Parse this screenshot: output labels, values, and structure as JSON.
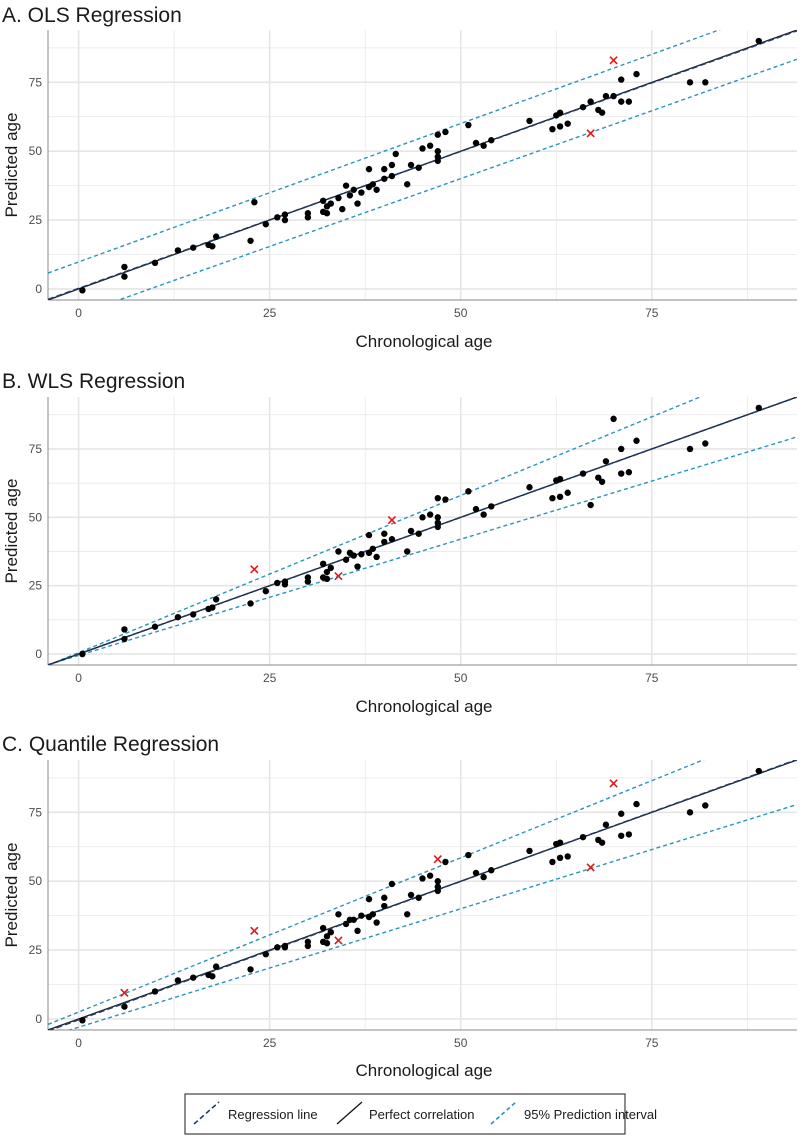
{
  "colors": {
    "regression_line": "#1f3d66",
    "perfect_line": "#1a1a1a",
    "prediction_interval": "#2a95b8",
    "points": "#000000",
    "outliers": "#e01919",
    "grid": "#e5e5e5",
    "axis_text": "#4d4d4d"
  },
  "legend": {
    "items": [
      {
        "label": "Regression line",
        "style": "dashed-dark-blue"
      },
      {
        "label": "Perfect correlation",
        "style": "solid-black"
      },
      {
        "label": "95% Prediction interval",
        "style": "dashed-light-blue"
      }
    ]
  },
  "chart_data": [
    {
      "type": "scatter",
      "title": "A. OLS Regression",
      "xlabel": "Chronological age",
      "ylabel": "Predicted age",
      "xlim": [
        -4,
        94
      ],
      "ylim": [
        -4,
        94
      ],
      "xticks": [
        0,
        25,
        50,
        75
      ],
      "yticks": [
        0,
        25,
        50,
        75
      ],
      "grid": true,
      "regression": {
        "intercept": 0.2,
        "slope": 0.995
      },
      "perfect": {
        "intercept": 0,
        "slope": 1
      },
      "pi_upper": {
        "intercept": 9.8,
        "slope": 1.005
      },
      "pi_lower": {
        "intercept": -9.2,
        "slope": 0.985
      },
      "outliers": [
        [
          70,
          83
        ],
        [
          67,
          56.5
        ]
      ],
      "points": [
        [
          0.5,
          -0.5
        ],
        [
          6,
          8
        ],
        [
          6,
          4.5
        ],
        [
          10,
          9.5
        ],
        [
          13,
          14
        ],
        [
          15,
          15
        ],
        [
          17,
          16
        ],
        [
          17.5,
          15.5
        ],
        [
          18,
          19
        ],
        [
          23,
          31.5
        ],
        [
          22.5,
          17.5
        ],
        [
          24.5,
          23.5
        ],
        [
          26,
          26
        ],
        [
          27,
          25
        ],
        [
          27,
          27
        ],
        [
          30,
          26
        ],
        [
          30,
          27.5
        ],
        [
          32,
          32
        ],
        [
          32,
          28
        ],
        [
          32.5,
          30
        ],
        [
          32.5,
          27.5
        ],
        [
          33,
          31
        ],
        [
          34,
          33
        ],
        [
          34.5,
          29
        ],
        [
          35,
          37.5
        ],
        [
          35.5,
          34
        ],
        [
          36,
          36
        ],
        [
          36.5,
          31
        ],
        [
          37,
          35
        ],
        [
          38,
          37
        ],
        [
          38,
          43.5
        ],
        [
          38.5,
          38
        ],
        [
          39,
          36
        ],
        [
          40,
          40
        ],
        [
          40,
          43.5
        ],
        [
          41,
          41
        ],
        [
          41,
          45
        ],
        [
          41.5,
          49
        ],
        [
          43,
          38
        ],
        [
          43.5,
          45
        ],
        [
          44.5,
          44
        ],
        [
          45,
          51
        ],
        [
          46,
          52
        ],
        [
          47,
          46.5
        ],
        [
          47,
          48
        ],
        [
          47,
          50
        ],
        [
          47,
          56
        ],
        [
          48,
          57
        ],
        [
          51,
          59.5
        ],
        [
          52,
          53
        ],
        [
          53,
          52
        ],
        [
          54,
          54
        ],
        [
          59,
          61
        ],
        [
          62,
          58
        ],
        [
          62.5,
          63
        ],
        [
          63,
          64
        ],
        [
          63,
          59
        ],
        [
          64,
          60
        ],
        [
          66,
          66
        ],
        [
          67,
          68
        ],
        [
          68,
          65
        ],
        [
          68.5,
          64
        ],
        [
          69,
          70
        ],
        [
          70,
          70
        ],
        [
          71,
          68
        ],
        [
          71,
          76
        ],
        [
          72,
          68
        ],
        [
          73,
          78
        ],
        [
          80,
          75
        ],
        [
          82,
          75
        ],
        [
          89,
          90
        ]
      ]
    },
    {
      "type": "scatter",
      "title": "B. WLS Regression",
      "xlabel": "Chronological age",
      "ylabel": "Predicted age",
      "xlim": [
        -4,
        94
      ],
      "ylim": [
        -4,
        94
      ],
      "xticks": [
        0,
        25,
        50,
        75
      ],
      "yticks": [
        0,
        25,
        50,
        75
      ],
      "grid": true,
      "regression": {
        "intercept": 0.0,
        "slope": 1.0
      },
      "perfect": {
        "intercept": 0,
        "slope": 1
      },
      "pi_upper": {
        "intercept": 0.5,
        "slope": 1.15
      },
      "pi_lower": {
        "intercept": -0.5,
        "slope": 0.85
      },
      "outliers": [
        [
          23,
          31
        ],
        [
          34,
          28.5
        ],
        [
          41,
          49
        ]
      ],
      "points": [
        [
          0.5,
          0
        ],
        [
          6,
          9
        ],
        [
          6,
          5.5
        ],
        [
          10,
          10
        ],
        [
          13,
          13.5
        ],
        [
          15,
          14.5
        ],
        [
          17,
          16.5
        ],
        [
          17.5,
          17
        ],
        [
          18,
          20
        ],
        [
          22.5,
          18.5
        ],
        [
          24.5,
          23
        ],
        [
          26,
          26
        ],
        [
          27,
          25.5
        ],
        [
          27,
          26.5
        ],
        [
          30,
          26.5
        ],
        [
          30,
          28
        ],
        [
          32,
          33
        ],
        [
          32,
          28
        ],
        [
          32.5,
          30
        ],
        [
          32.5,
          27.5
        ],
        [
          33,
          31.5
        ],
        [
          34,
          37.5
        ],
        [
          35,
          34.5
        ],
        [
          35.5,
          37
        ],
        [
          36,
          36
        ],
        [
          36.5,
          32
        ],
        [
          37,
          36.5
        ],
        [
          38,
          37
        ],
        [
          38,
          43.5
        ],
        [
          38.5,
          38.5
        ],
        [
          39,
          35.5
        ],
        [
          40,
          41
        ],
        [
          40,
          44
        ],
        [
          41,
          42
        ],
        [
          43,
          37.5
        ],
        [
          43.5,
          45
        ],
        [
          44.5,
          44
        ],
        [
          45,
          50
        ],
        [
          46,
          51
        ],
        [
          47,
          46.5
        ],
        [
          47,
          48
        ],
        [
          47,
          50
        ],
        [
          47,
          57
        ],
        [
          48,
          56.5
        ],
        [
          51,
          59.5
        ],
        [
          52,
          53
        ],
        [
          53,
          51
        ],
        [
          54,
          54
        ],
        [
          59,
          61
        ],
        [
          62,
          57
        ],
        [
          62.5,
          63.5
        ],
        [
          63,
          64
        ],
        [
          63,
          57.5
        ],
        [
          64,
          59
        ],
        [
          66,
          66
        ],
        [
          67,
          54.5
        ],
        [
          68,
          64.5
        ],
        [
          68.5,
          63
        ],
        [
          69,
          70.5
        ],
        [
          70,
          86
        ],
        [
          71,
          66
        ],
        [
          71,
          75
        ],
        [
          72,
          66.5
        ],
        [
          73,
          78
        ],
        [
          80,
          75
        ],
        [
          82,
          77
        ],
        [
          89,
          90
        ]
      ]
    },
    {
      "type": "scatter",
      "title": "C. Quantile Regression",
      "xlabel": "Chronological age",
      "ylabel": "Predicted age",
      "xlim": [
        -4,
        94
      ],
      "ylim": [
        -4,
        94
      ],
      "xticks": [
        0,
        25,
        50,
        75
      ],
      "yticks": [
        0,
        25,
        50,
        75
      ],
      "grid": true,
      "regression": {
        "intercept": -0.3,
        "slope": 1.005
      },
      "perfect": {
        "intercept": 0,
        "slope": 1
      },
      "pi_upper": {
        "intercept": 2.5,
        "slope": 1.12
      },
      "pi_lower": {
        "intercept": -3.0,
        "slope": 0.86
      },
      "outliers": [
        [
          6,
          9.5
        ],
        [
          23,
          32
        ],
        [
          34,
          28.5
        ],
        [
          47,
          58
        ],
        [
          67,
          55
        ],
        [
          70,
          85.5
        ]
      ],
      "points": [
        [
          0.5,
          -0.5
        ],
        [
          6,
          4.5
        ],
        [
          10,
          10
        ],
        [
          13,
          14
        ],
        [
          15,
          15
        ],
        [
          17,
          16
        ],
        [
          17.5,
          15.5
        ],
        [
          18,
          19
        ],
        [
          22.5,
          18
        ],
        [
          24.5,
          23.5
        ],
        [
          26,
          26
        ],
        [
          27,
          26
        ],
        [
          27,
          26.5
        ],
        [
          30,
          26.5
        ],
        [
          30,
          28
        ],
        [
          32,
          33
        ],
        [
          32,
          28
        ],
        [
          32.5,
          30
        ],
        [
          32.5,
          27.5
        ],
        [
          33,
          31.5
        ],
        [
          34,
          38
        ],
        [
          35,
          34.5
        ],
        [
          35.5,
          36
        ],
        [
          36,
          36
        ],
        [
          36.5,
          32
        ],
        [
          37,
          37.5
        ],
        [
          38,
          37
        ],
        [
          38,
          43.5
        ],
        [
          38.5,
          38
        ],
        [
          39,
          35
        ],
        [
          40,
          41
        ],
        [
          40,
          44
        ],
        [
          41,
          49
        ],
        [
          43,
          38
        ],
        [
          43.5,
          45
        ],
        [
          44.5,
          44
        ],
        [
          45,
          51
        ],
        [
          46,
          52
        ],
        [
          47,
          46.5
        ],
        [
          47,
          48
        ],
        [
          47,
          50
        ],
        [
          48,
          57
        ],
        [
          51,
          59.5
        ],
        [
          52,
          53
        ],
        [
          53,
          51.5
        ],
        [
          54,
          54
        ],
        [
          59,
          61
        ],
        [
          62,
          57
        ],
        [
          62.5,
          63.5
        ],
        [
          63,
          64
        ],
        [
          63,
          58.5
        ],
        [
          64,
          59
        ],
        [
          66,
          66
        ],
        [
          68,
          65
        ],
        [
          68.5,
          64
        ],
        [
          69,
          70.5
        ],
        [
          71,
          66.5
        ],
        [
          71,
          74.5
        ],
        [
          72,
          67
        ],
        [
          73,
          78
        ],
        [
          80,
          75
        ],
        [
          82,
          77.5
        ],
        [
          89,
          90
        ]
      ]
    }
  ]
}
